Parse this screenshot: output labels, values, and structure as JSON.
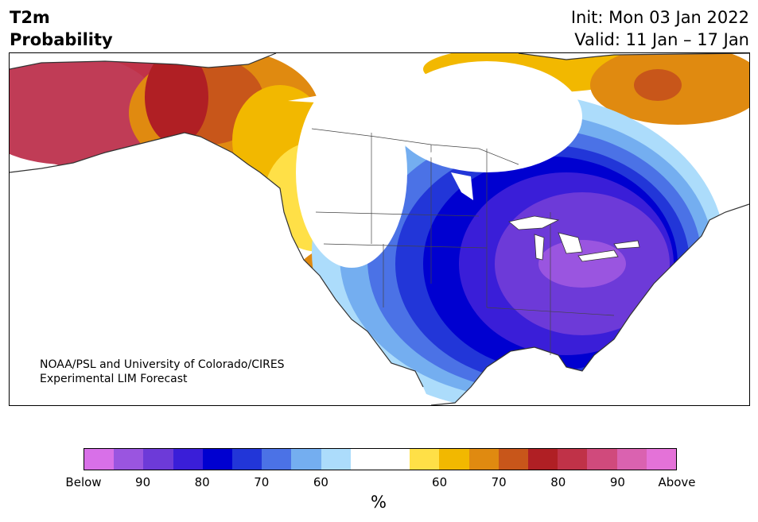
{
  "header": {
    "title_line1": "T2m",
    "title_line2": "Probability",
    "init": "Init: Mon 03 Jan 2022",
    "valid": "Valid: 11 Jan – 17 Jan"
  },
  "map": {
    "credit_line1": "NOAA/PSL and University of Colorado/CIRES",
    "credit_line2": "Experimental LIM Forecast"
  },
  "colorbar": {
    "colors": [
      "#d870e8",
      "#9a55e0",
      "#6d3ad8",
      "#3a1ed8",
      "#0000d0",
      "#2236d8",
      "#4b72e6",
      "#74aef0",
      "#acdcfb",
      "#ffffff",
      "#ffffff",
      "#ffe047",
      "#f2b800",
      "#e08a10",
      "#c8561a",
      "#b01f24",
      "#c03248",
      "#d04a7c",
      "#da62b0",
      "#e472d8"
    ],
    "tick_labels": [
      "Below",
      "90",
      "80",
      "70",
      "60",
      "",
      "60",
      "70",
      "80",
      "90",
      "Above"
    ],
    "unit": "%"
  }
}
